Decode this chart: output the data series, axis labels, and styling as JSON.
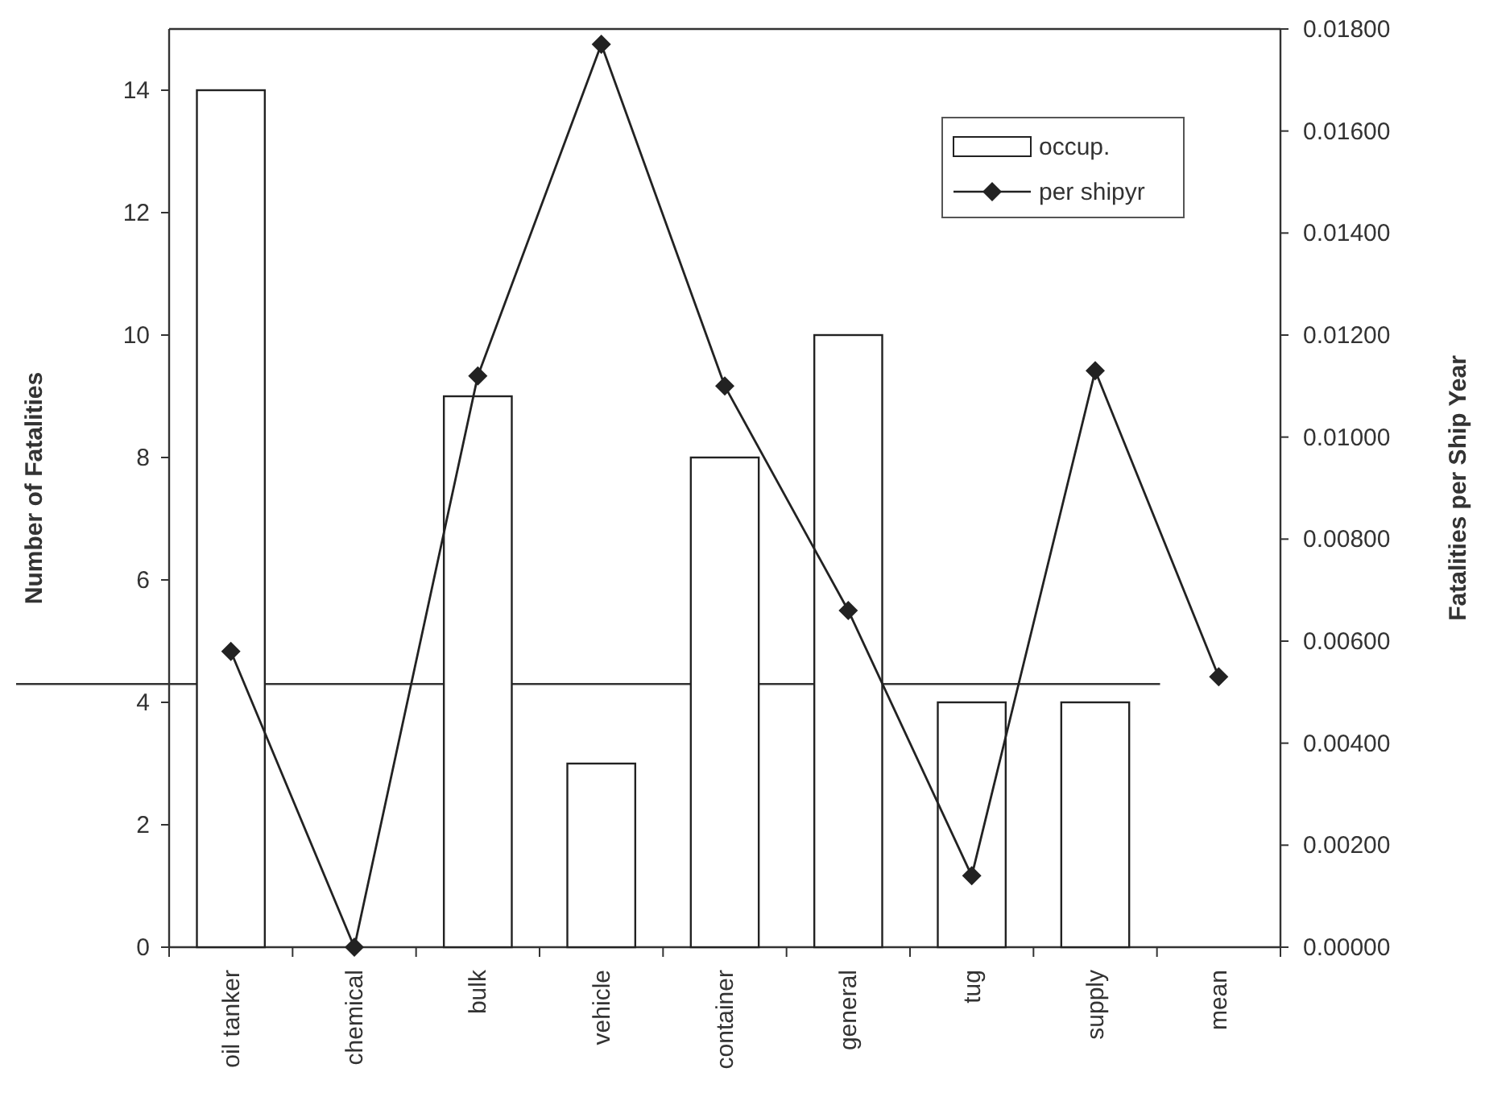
{
  "chart_data": {
    "type": "bar",
    "categories": [
      "oil tanker",
      "chemical",
      "bulk",
      "vehicle",
      "container",
      "general",
      "tug",
      "supply",
      "mean"
    ],
    "series": [
      {
        "name": "occup.",
        "color": "#ffffff",
        "values": [
          14,
          0,
          9,
          3,
          8,
          10,
          4,
          4,
          null
        ]
      },
      {
        "name": "per shipyr",
        "type": "line",
        "axis": "y2",
        "color": "#222222",
        "marker": "diamond",
        "values": [
          0.0058,
          0,
          0.0112,
          0.0177,
          0.011,
          0.0066,
          0.0014,
          0.0113,
          0.0053
        ]
      }
    ],
    "ylabel": "Number of Fatalities",
    "y2label": "Fatalities per Ship Year",
    "ylim": [
      0,
      15
    ],
    "yticks": [
      0,
      2,
      4,
      6,
      8,
      10,
      12,
      14
    ],
    "y2lim": [
      0,
      0.018
    ],
    "y2ticks": [
      {
        "value": 0,
        "label": "0.00000"
      },
      {
        "value": 0.002,
        "label": "0.00200"
      },
      {
        "value": 0.004,
        "label": "0.00400"
      },
      {
        "value": 0.006,
        "label": "0.00600"
      },
      {
        "value": 0.008,
        "label": "0.00800"
      },
      {
        "value": 0.01,
        "label": "0.01000"
      },
      {
        "value": 0.012,
        "label": "0.01200"
      },
      {
        "value": 0.014,
        "label": "0.01400"
      },
      {
        "value": 0.016,
        "label": "0.01600"
      },
      {
        "value": 0.018,
        "label": "0.01800"
      }
    ],
    "ref_lines": [
      {
        "axis": "y",
        "value": 4.3,
        "color": "#333333"
      }
    ],
    "legend": "top right",
    "grid": false
  }
}
